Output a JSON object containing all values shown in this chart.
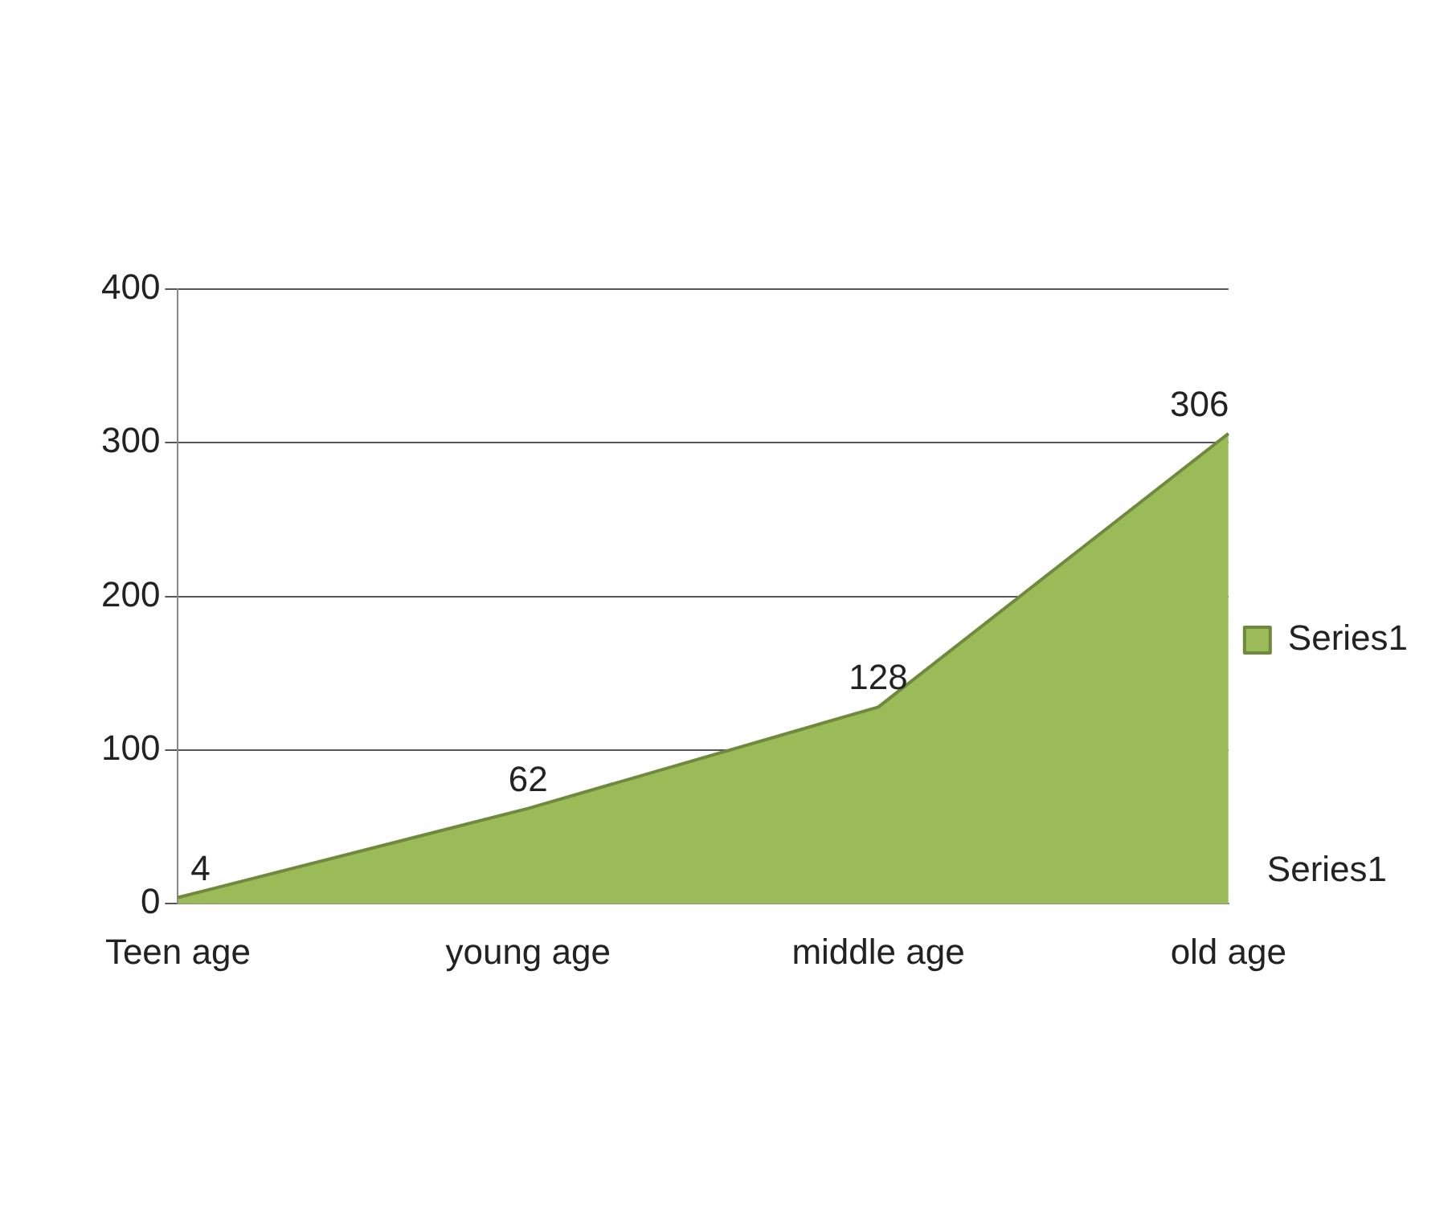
{
  "chart_data": {
    "type": "area",
    "categories": [
      "Teen age",
      "young age",
      "middle age",
      "old age"
    ],
    "series": [
      {
        "name": "Series1",
        "color": "#9bbb59",
        "values": [
          4,
          62,
          128,
          306
        ]
      }
    ],
    "ylim": [
      0,
      400
    ],
    "yticks": [
      0,
      100,
      200,
      300,
      400
    ],
    "grid": "y",
    "legend": "right",
    "data_labels": true,
    "annotations": [
      "Series1"
    ]
  }
}
